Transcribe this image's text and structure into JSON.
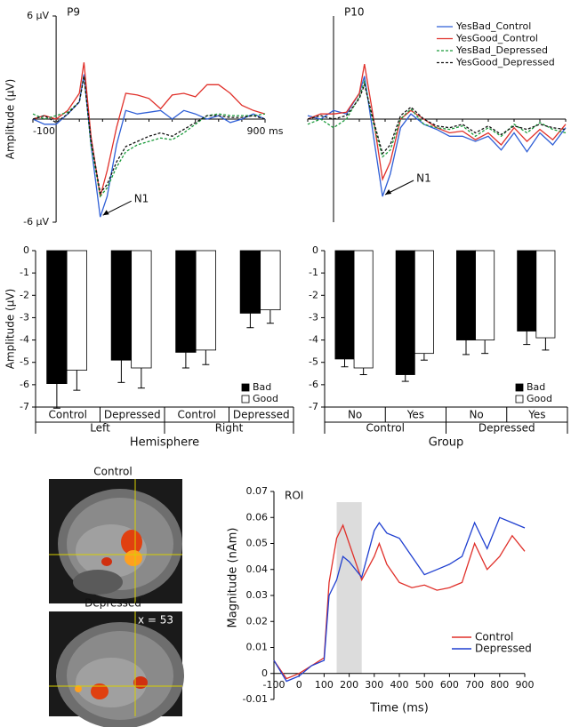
{
  "chart_data": [
    {
      "type": "line",
      "title": "P9",
      "y_label": "Amplitude (µV)",
      "annotation": "N1",
      "x": [
        -100,
        -50,
        0,
        50,
        100,
        120,
        150,
        190,
        220,
        260,
        300,
        350,
        400,
        450,
        500,
        550,
        600,
        650,
        700,
        750,
        800,
        850,
        900
      ],
      "xlim": [
        -100,
        900
      ],
      "ylim": [
        -6,
        6
      ],
      "xticks": [
        -100,
        {
          "value": 900,
          "label": "900 ms"
        }
      ],
      "yticks": [
        {
          "value": 6,
          "label": "6 µV"
        },
        {
          "value": -6,
          "label": "-6 µV"
        }
      ],
      "series": [
        {
          "name": "YesBad_Control",
          "color": "#2f5fd6",
          "style": "solid",
          "values": [
            0,
            -0.3,
            -0.3,
            0.3,
            1,
            2.6,
            -1.5,
            -5.7,
            -4.5,
            -1.5,
            0.5,
            0.3,
            0.4,
            0.5,
            0,
            0.5,
            0.3,
            0,
            0.2,
            -0.2,
            0,
            0.3,
            0
          ]
        },
        {
          "name": "YesGood_Control",
          "color": "#e0302a",
          "style": "solid",
          "values": [
            0,
            0.2,
            0,
            0.5,
            1.5,
            3.3,
            -1,
            -4.5,
            -3,
            -0.5,
            1.5,
            1.4,
            1.2,
            0.6,
            1.4,
            1.5,
            1.3,
            2,
            2,
            1.5,
            0.8,
            0.5,
            0.3
          ]
        },
        {
          "name": "YesBad_Depressed",
          "color": "#1a9a3a",
          "style": "dashed",
          "values": [
            0.3,
            0,
            0.2,
            0.4,
            1,
            2.5,
            -1.5,
            -4.5,
            -4,
            -2.8,
            -1.9,
            -1.5,
            -1.3,
            -1.1,
            -1.2,
            -0.8,
            -0.3,
            0.2,
            0.3,
            0.2,
            0.2,
            0.2,
            0.3
          ]
        },
        {
          "name": "YesGood_Depressed",
          "color": "#111111",
          "style": "dashed",
          "values": [
            0,
            0.2,
            -0.2,
            0.3,
            1,
            2.5,
            -1.2,
            -4.3,
            -3.8,
            -2.5,
            -1.6,
            -1.3,
            -1,
            -0.8,
            -1,
            -0.6,
            -0.2,
            0.2,
            0.2,
            0.1,
            0.1,
            0.2,
            0
          ]
        }
      ]
    },
    {
      "type": "line",
      "title": "P10",
      "annotation": "N1",
      "legend": "top-right",
      "x": [
        -100,
        -50,
        0,
        50,
        100,
        120,
        150,
        190,
        220,
        260,
        300,
        350,
        400,
        450,
        500,
        550,
        600,
        650,
        700,
        750,
        800,
        850,
        900
      ],
      "xlim": [
        -100,
        900
      ],
      "ylim": [
        -6,
        6
      ],
      "series": [
        {
          "name": "YesBad_Control",
          "color": "#2f5fd6",
          "style": "solid",
          "values": [
            0.2,
            0,
            0.5,
            0.3,
            1.5,
            2.5,
            -0.5,
            -4.5,
            -3.2,
            -0.5,
            0.3,
            -0.3,
            -0.6,
            -1,
            -1,
            -1.3,
            -1,
            -1.8,
            -0.8,
            -1.9,
            -0.8,
            -1.5,
            -0.5
          ]
        },
        {
          "name": "YesGood_Control",
          "color": "#e0302a",
          "style": "solid",
          "values": [
            0,
            0.3,
            0.3,
            0.4,
            1.5,
            3.2,
            0.5,
            -3.5,
            -2.5,
            0,
            0.5,
            0,
            -0.5,
            -0.8,
            -0.7,
            -1.2,
            -0.8,
            -1.5,
            -0.5,
            -1.3,
            -0.6,
            -1.2,
            -0.3
          ]
        },
        {
          "name": "YesBad_Depressed",
          "color": "#1a9a3a",
          "style": "dashed",
          "values": [
            -0.3,
            0,
            -0.5,
            0,
            1.3,
            2.2,
            0,
            -2.2,
            -1.8,
            0,
            0.6,
            -0.3,
            -0.5,
            -0.6,
            -0.4,
            -1,
            -0.5,
            -1,
            -0.3,
            -0.8,
            -0.2,
            -0.6,
            -0.8
          ]
        },
        {
          "name": "YesGood_Depressed",
          "color": "#111111",
          "style": "dashed",
          "values": [
            0,
            0.2,
            0,
            0.2,
            1.2,
            2,
            0.2,
            -2,
            -1.5,
            0.2,
            0.7,
            0,
            -0.4,
            -0.5,
            -0.3,
            -0.8,
            -0.4,
            -0.9,
            -0.4,
            -0.6,
            -0.3,
            -0.5,
            -0.6
          ]
        }
      ]
    },
    {
      "type": "bar",
      "y_label": "Amplitude (µV)",
      "x_label": "Hemisphere",
      "legend": "bottom-right",
      "categories": [
        "Control",
        "Depressed",
        "Control",
        "Depressed"
      ],
      "groups": [
        "Left",
        "Right"
      ],
      "ylim": [
        -7,
        0
      ],
      "yticks": [
        0,
        -1,
        -2,
        -3,
        -4,
        -5,
        -6,
        -7
      ],
      "series": [
        {
          "name": "Bad",
          "color": "#000000",
          "values": [
            -5.95,
            -4.9,
            -4.55,
            -2.8
          ],
          "errors": [
            1.1,
            1.0,
            0.7,
            0.65
          ]
        },
        {
          "name": "Good",
          "color": "#ffffff",
          "values": [
            -5.35,
            -5.25,
            -4.45,
            -2.65
          ],
          "errors": [
            0.9,
            0.9,
            0.65,
            0.6
          ]
        }
      ]
    },
    {
      "type": "bar",
      "x_label": "Group",
      "legend": "bottom-right",
      "categories": [
        "No",
        "Yes",
        "No",
        "Yes"
      ],
      "groups": [
        "Control",
        "Depressed"
      ],
      "ylim": [
        -7,
        0
      ],
      "yticks": [
        0,
        -1,
        -2,
        -3,
        -4,
        -5,
        -6,
        -7
      ],
      "series": [
        {
          "name": "Bad",
          "color": "#000000",
          "values": [
            -4.85,
            -5.55,
            -4.0,
            -3.6
          ],
          "errors": [
            0.35,
            0.3,
            0.65,
            0.6
          ]
        },
        {
          "name": "Good",
          "color": "#ffffff",
          "values": [
            -5.25,
            -4.6,
            -4.0,
            -3.9
          ],
          "errors": [
            0.3,
            0.3,
            0.6,
            0.55
          ]
        }
      ]
    },
    {
      "type": "roi",
      "title": "ROI",
      "x_label": "Time (ms)",
      "y_label": "Magnitude (nAm)",
      "legend": "bottom-right",
      "x": [
        -100,
        -50,
        0,
        50,
        100,
        120,
        150,
        175,
        200,
        250,
        300,
        320,
        350,
        400,
        450,
        500,
        550,
        600,
        650,
        700,
        750,
        800,
        850,
        900
      ],
      "xlim": [
        -100,
        900
      ],
      "ylim": [
        -0.01,
        0.07
      ],
      "xticks": [
        -100,
        0,
        100,
        200,
        300,
        400,
        500,
        600,
        700,
        800,
        900
      ],
      "yticks": [
        -0.01,
        0,
        0.01,
        0.02,
        0.03,
        0.04,
        0.05,
        0.06,
        0.07
      ],
      "highlight": [
        150,
        250
      ],
      "series": [
        {
          "name": "Control",
          "color": "#e0302a",
          "values": [
            0.005,
            -0.002,
            0,
            0.003,
            0.006,
            0.035,
            0.052,
            0.057,
            0.05,
            0.036,
            0.045,
            0.05,
            0.042,
            0.035,
            0.033,
            0.034,
            0.032,
            0.033,
            0.035,
            0.05,
            0.04,
            0.045,
            0.053,
            0.047
          ]
        },
        {
          "name": "Depressed",
          "color": "#1f3fd0",
          "values": [
            0.005,
            -0.003,
            -0.001,
            0.003,
            0.005,
            0.03,
            0.036,
            0.045,
            0.043,
            0.037,
            0.055,
            0.058,
            0.054,
            0.052,
            0.045,
            0.038,
            0.04,
            0.042,
            0.045,
            0.058,
            0.048,
            0.06,
            0.058,
            0.056
          ]
        }
      ]
    }
  ],
  "brain_images": {
    "control_label": "Control",
    "depressed_label": "Depressed",
    "slice_label": "x = 53"
  }
}
